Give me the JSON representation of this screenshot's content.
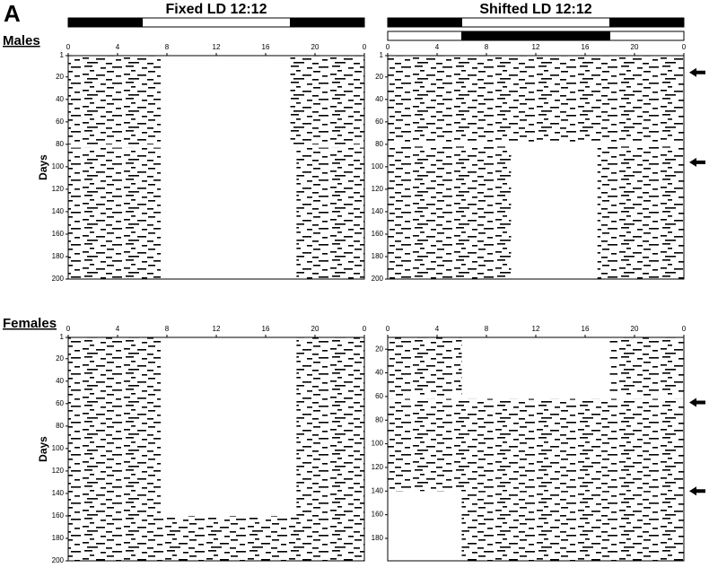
{
  "panel_label": "A",
  "column_titles": [
    "Fixed LD 12:12",
    "Shifted LD 12:12"
  ],
  "row_labels": [
    "Males",
    "Females"
  ],
  "chart_data": [
    {
      "type": "actogram",
      "ylabel": "Days",
      "xlim": [
        0,
        24
      ],
      "xticks": [
        0,
        4,
        8,
        12,
        16,
        20,
        {
          "value": 24,
          "label": "0"
        }
      ],
      "ylim": [
        1,
        200
      ],
      "yticks": [
        1,
        20,
        40,
        60,
        80,
        100,
        120,
        140,
        160,
        180,
        200
      ],
      "ld_bars": [
        [
          {
            "start": 0,
            "end": 6,
            "color": "#000000"
          },
          {
            "start": 6,
            "end": 18,
            "color": "#ffffff"
          },
          {
            "start": 18,
            "end": 24,
            "color": "#000000"
          }
        ]
      ],
      "activity": [
        {
          "days": [
            1,
            80
          ],
          "hours": [
            0,
            7.5
          ]
        },
        {
          "days": [
            1,
            80
          ],
          "hours": [
            18,
            24
          ]
        },
        {
          "days": [
            83,
            200
          ],
          "hours": [
            0,
            7.5
          ]
        },
        {
          "days": [
            83,
            200
          ],
          "hours": [
            18.5,
            24
          ]
        }
      ],
      "arrows": []
    },
    {
      "type": "actogram",
      "xlim": [
        0,
        24
      ],
      "xticks": [
        0,
        4,
        8,
        12,
        16,
        20,
        {
          "value": 24,
          "label": "0"
        }
      ],
      "ylim": [
        1,
        200
      ],
      "yticks": [
        1,
        20,
        40,
        60,
        80,
        100,
        120,
        140,
        160,
        180,
        200
      ],
      "ld_bars": [
        [
          {
            "start": 0,
            "end": 6,
            "color": "#000000"
          },
          {
            "start": 6,
            "end": 18,
            "color": "#ffffff"
          },
          {
            "start": 18,
            "end": 24,
            "color": "#000000"
          }
        ],
        [
          {
            "start": 0,
            "end": 6,
            "color": "#ffffff"
          },
          {
            "start": 6,
            "end": 18,
            "color": "#000000"
          },
          {
            "start": 18,
            "end": 24,
            "color": "#ffffff"
          }
        ]
      ],
      "activity": [
        {
          "days": [
            1,
            78
          ],
          "hours": [
            0,
            24
          ]
        },
        {
          "days": [
            82,
            200
          ],
          "hours": [
            0,
            10
          ]
        },
        {
          "days": [
            82,
            200
          ],
          "hours": [
            17,
            24
          ]
        }
      ],
      "arrows": [
        16,
        96
      ]
    },
    {
      "type": "actogram",
      "ylabel": "Days",
      "xlim": [
        0,
        24
      ],
      "xticks": [
        0,
        4,
        8,
        12,
        16,
        20,
        {
          "value": 24,
          "label": "0"
        }
      ],
      "ylim": [
        1,
        200
      ],
      "yticks": [
        1,
        20,
        40,
        60,
        80,
        100,
        120,
        140,
        160,
        180,
        200
      ],
      "ld_bars": [],
      "activity": [
        {
          "days": [
            1,
            200
          ],
          "hours": [
            0,
            7.5
          ]
        },
        {
          "days": [
            1,
            200
          ],
          "hours": [
            18.5,
            24
          ]
        },
        {
          "days": [
            160,
            200
          ],
          "hours": [
            7.5,
            18.5
          ]
        }
      ],
      "arrows": []
    },
    {
      "type": "actogram",
      "xlim": [
        0,
        24
      ],
      "xticks": [
        0,
        4,
        8,
        12,
        16,
        20,
        {
          "value": 24,
          "label": "0"
        }
      ],
      "ylim": [
        10,
        199
      ],
      "yticks": [
        20,
        40,
        60,
        80,
        100,
        120,
        140,
        160,
        180
      ],
      "ld_bars": [],
      "activity": [
        {
          "days": [
            10,
            60
          ],
          "hours": [
            0,
            6
          ]
        },
        {
          "days": [
            10,
            60
          ],
          "hours": [
            18,
            24
          ]
        },
        {
          "days": [
            62,
            140
          ],
          "hours": [
            0,
            24
          ]
        },
        {
          "days": [
            140,
            199
          ],
          "hours": [
            6,
            24
          ]
        }
      ],
      "arrows": [
        65,
        140
      ]
    }
  ]
}
